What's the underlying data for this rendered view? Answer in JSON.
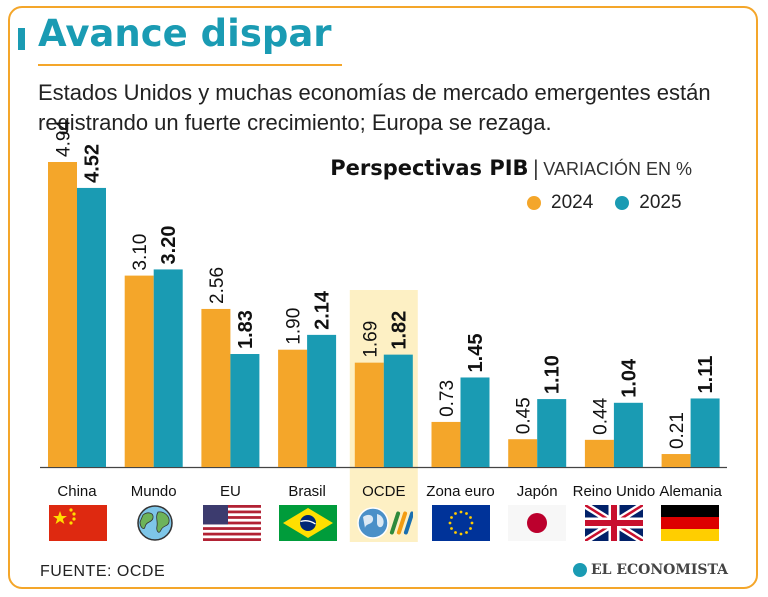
{
  "header": {
    "title": "Avance dispar",
    "subtitle": " Estados Unidos y muchas economías de mercado emergentes están registrando un fuerte crecimiento; Europa se rezaga."
  },
  "chart_data": {
    "type": "bar",
    "title": "Perspectivas PIB",
    "separator": "|",
    "unit_label": "VARIACIÓN EN %",
    "categories": [
      "China",
      "Mundo",
      "EU",
      "Brasil",
      "OCDE",
      "Zona euro",
      "Japón",
      "Reino Unido",
      "Alemania"
    ],
    "series": [
      {
        "name": "2024",
        "color": "#f4a62a",
        "values": [
          4.94,
          3.1,
          2.56,
          1.9,
          1.69,
          0.73,
          0.45,
          0.44,
          0.21
        ],
        "labels": [
          "4.94",
          "3.10",
          "2.56",
          "1.90",
          "1.69",
          "0.73",
          "0.45",
          "0.44",
          "0.21"
        ]
      },
      {
        "name": "2025",
        "color": "#1a9bb3",
        "values": [
          4.52,
          3.2,
          1.83,
          2.14,
          1.82,
          1.45,
          1.1,
          1.04,
          1.11
        ],
        "labels": [
          "4.52",
          "3.20",
          "1.83",
          "2.14",
          "1.82",
          "1.45",
          "1.10",
          "1.04",
          "1.11"
        ]
      }
    ],
    "highlight_category": "OCDE",
    "highlight_color": "#fdf0c4",
    "ylim": [
      0,
      4.94
    ],
    "grid": false,
    "legend": "top-right"
  },
  "flags": [
    "china-flag",
    "world-globe-icon",
    "usa-flag",
    "brazil-flag",
    "oecd-logo-icon",
    "eu-flag",
    "japan-flag",
    "uk-flag",
    "germany-flag"
  ],
  "footer": {
    "source": "FUENTE:  OCDE",
    "logo_text": "EL ECONOMISTA"
  }
}
